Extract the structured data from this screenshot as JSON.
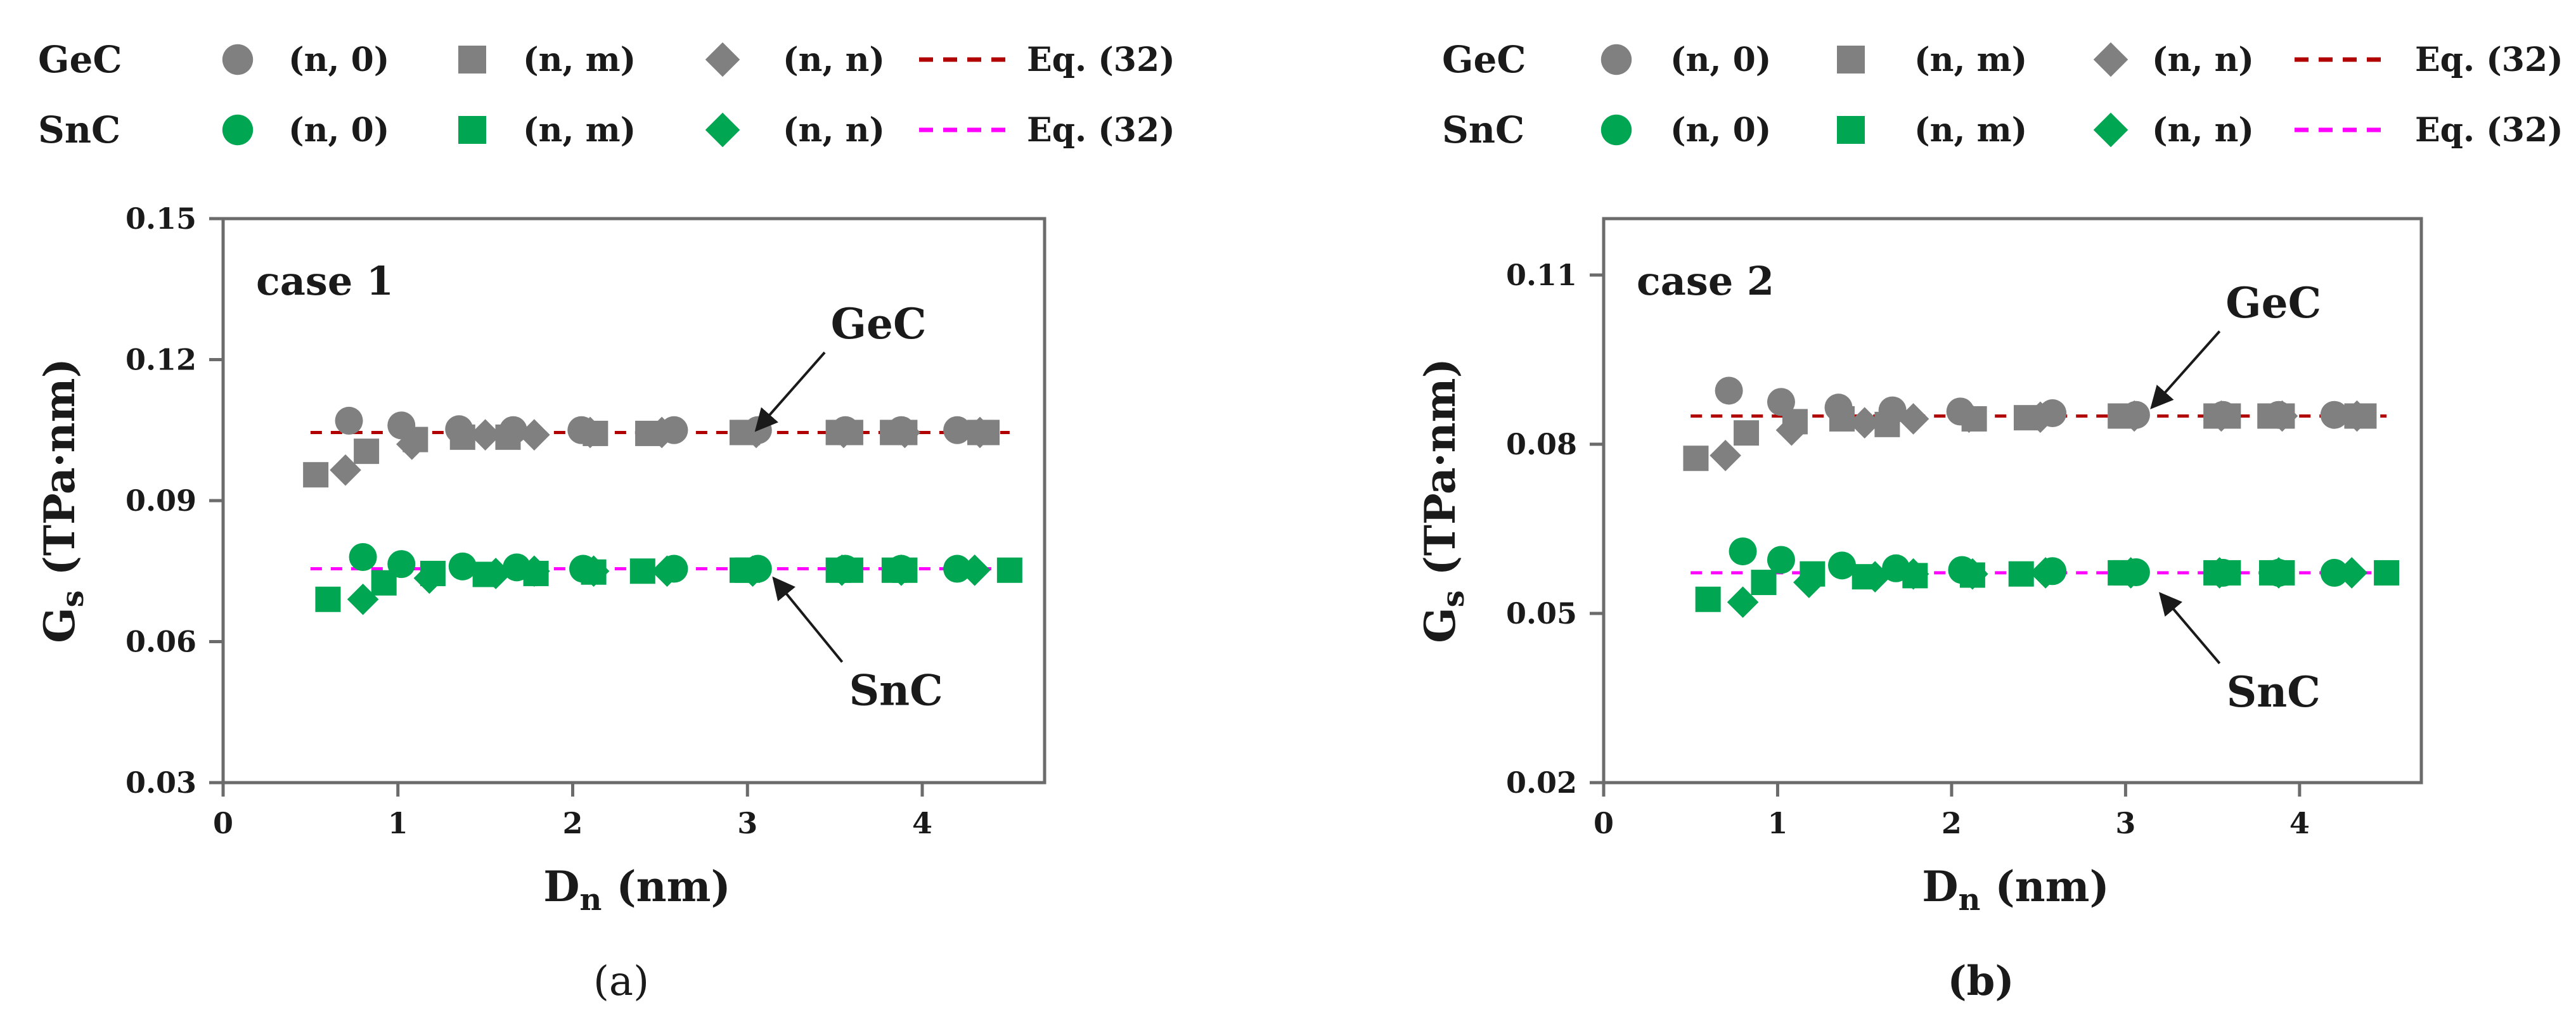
{
  "colors": {
    "gec_marker": "#808080",
    "snc_marker": "#00a651",
    "gec_eq_line": "#b00000",
    "snc_eq_line": "#ff00ff",
    "axis": "#6b6b6b",
    "text": "#1a1a1a"
  },
  "legend": {
    "rows": [
      {
        "group": "GeC",
        "items": [
          {
            "marker": "circle",
            "label": "(n, 0)"
          },
          {
            "marker": "square",
            "label": "(n, m)"
          },
          {
            "marker": "diamond",
            "label": "(n, n)"
          },
          {
            "marker": "dashed-line",
            "label": "Eq. (32)"
          }
        ]
      },
      {
        "group": "SnC",
        "items": [
          {
            "marker": "circle",
            "label": "(n, 0)"
          },
          {
            "marker": "square",
            "label": "(n, m)"
          },
          {
            "marker": "diamond",
            "label": "(n, n)"
          },
          {
            "marker": "dashed-line",
            "label": "Eq. (32)"
          }
        ]
      }
    ]
  },
  "chart_data": [
    {
      "type": "scatter",
      "panel_label": "(a)",
      "case_label": "case 1",
      "xlabel": "D",
      "xlabel_sub": "n",
      "xlabel_unit": " (nm)",
      "ylabel": "G",
      "ylabel_sub": "s",
      "ylabel_unit": " (TPa·nm)",
      "xlim": [
        0,
        4.7
      ],
      "ylim": [
        0.03,
        0.15
      ],
      "xticks": [
        0,
        1,
        2,
        3,
        4
      ],
      "yticks": [
        0.03,
        0.06,
        0.09,
        0.12,
        0.15
      ],
      "ytick_labels": [
        "0.03",
        "0.06",
        "0.09",
        "0.12",
        "0.15"
      ],
      "annotations": [
        {
          "text": "GeC",
          "arrow_to": [
            3.05,
            0.105
          ],
          "text_at": [
            3.75,
            0.1245
          ]
        },
        {
          "text": "SnC",
          "arrow_to": [
            3.15,
            0.0735
          ],
          "text_at": [
            3.85,
            0.0465
          ]
        }
      ],
      "series": [
        {
          "name": "GeC (n, 0)",
          "material": "GeC",
          "marker": "circle",
          "x": [
            0.72,
            1.02,
            1.35,
            1.66,
            2.05,
            2.58,
            3.06,
            3.56,
            3.88,
            4.2
          ],
          "y": [
            0.107,
            0.106,
            0.1052,
            0.105,
            0.105,
            0.105,
            0.105,
            0.105,
            0.105,
            0.105
          ]
        },
        {
          "name": "GeC (n, m)",
          "material": "GeC",
          "marker": "square",
          "x": [
            0.53,
            0.82,
            1.1,
            1.37,
            1.63,
            2.13,
            2.43,
            2.97,
            3.0,
            3.52,
            3.59,
            3.83,
            3.9,
            4.33,
            4.37
          ],
          "y": [
            0.0955,
            0.1005,
            0.103,
            0.1035,
            0.1035,
            0.1043,
            0.1043,
            0.1045,
            0.1045,
            0.1045,
            0.1045,
            0.1045,
            0.1045,
            0.1045,
            0.1045
          ]
        },
        {
          "name": "GeC (n, n)",
          "material": "GeC",
          "marker": "diamond",
          "x": [
            0.7,
            1.08,
            1.5,
            1.78,
            2.1,
            2.51,
            3.05,
            3.55,
            3.9,
            4.33
          ],
          "y": [
            0.0965,
            0.102,
            0.104,
            0.104,
            0.1045,
            0.1045,
            0.1045,
            0.1045,
            0.1045,
            0.1045
          ]
        },
        {
          "name": "SnC (n, 0)",
          "material": "SnC",
          "marker": "circle",
          "x": [
            0.8,
            1.02,
            1.37,
            1.68,
            2.06,
            2.58,
            3.06,
            3.56,
            3.88,
            4.2
          ],
          "y": [
            0.078,
            0.0765,
            0.076,
            0.0758,
            0.0755,
            0.0755,
            0.0755,
            0.0755,
            0.0755,
            0.0755
          ]
        },
        {
          "name": "SnC (n, m)",
          "material": "SnC",
          "marker": "square",
          "x": [
            0.6,
            0.92,
            1.2,
            1.5,
            1.79,
            2.12,
            2.4,
            2.97,
            3.0,
            3.52,
            3.59,
            3.84,
            3.9,
            4.5
          ],
          "y": [
            0.069,
            0.0725,
            0.0745,
            0.0743,
            0.0745,
            0.0748,
            0.075,
            0.0752,
            0.0752,
            0.0752,
            0.0752,
            0.0752,
            0.0752,
            0.0752
          ]
        },
        {
          "name": "SnC (n, n)",
          "material": "SnC",
          "marker": "diamond",
          "x": [
            0.8,
            1.18,
            1.56,
            1.78,
            2.12,
            2.54,
            3.03,
            3.54,
            3.88,
            4.3
          ],
          "y": [
            0.069,
            0.0735,
            0.0745,
            0.075,
            0.075,
            0.075,
            0.075,
            0.0752,
            0.0752,
            0.0752
          ]
        }
      ],
      "eq_lines": [
        {
          "name": "GeC Eq. (32)",
          "material": "GeC",
          "x": [
            0.5,
            4.5
          ],
          "y": [
            0.1045,
            0.1045
          ]
        },
        {
          "name": "SnC Eq. (32)",
          "material": "SnC",
          "x": [
            0.5,
            4.5
          ],
          "y": [
            0.0755,
            0.0755
          ]
        }
      ]
    },
    {
      "type": "scatter",
      "panel_label": "(b)",
      "case_label": "case 2",
      "xlabel": "D",
      "xlabel_sub": "n",
      "xlabel_unit": " (nm)",
      "ylabel": "G",
      "ylabel_sub": "s",
      "ylabel_unit": " (TPa·nm)",
      "xlim": [
        0,
        4.7
      ],
      "ylim": [
        0.02,
        0.12
      ],
      "xticks": [
        0,
        1,
        2,
        3,
        4
      ],
      "yticks": [
        0.02,
        0.05,
        0.08,
        0.11
      ],
      "ytick_labels": [
        "0.02",
        "0.05",
        "0.08",
        "0.11"
      ],
      "annotations": [
        {
          "text": "GeC",
          "arrow_to": [
            3.15,
            0.0865
          ],
          "text_at": [
            3.85,
            0.1025
          ]
        },
        {
          "text": "SnC",
          "arrow_to": [
            3.2,
            0.0535
          ],
          "text_at": [
            3.85,
            0.0335
          ]
        }
      ],
      "series": [
        {
          "name": "GeC (n, 0)",
          "material": "GeC",
          "marker": "circle",
          "x": [
            0.72,
            1.02,
            1.35,
            1.66,
            2.05,
            2.58,
            3.06,
            3.56,
            3.88,
            4.2
          ],
          "y": [
            0.0895,
            0.0875,
            0.0865,
            0.086,
            0.0858,
            0.0855,
            0.0852,
            0.0852,
            0.0852,
            0.0852
          ]
        },
        {
          "name": "GeC (n, m)",
          "material": "GeC",
          "marker": "square",
          "x": [
            0.53,
            0.82,
            1.1,
            1.37,
            1.63,
            2.13,
            2.43,
            2.97,
            3.0,
            3.52,
            3.59,
            3.83,
            3.9,
            4.33,
            4.37
          ],
          "y": [
            0.0775,
            0.082,
            0.084,
            0.0845,
            0.0835,
            0.0845,
            0.0847,
            0.085,
            0.085,
            0.085,
            0.085,
            0.085,
            0.085,
            0.085,
            0.085
          ]
        },
        {
          "name": "GeC (n, n)",
          "material": "GeC",
          "marker": "diamond",
          "x": [
            0.7,
            1.08,
            1.5,
            1.78,
            2.1,
            2.51,
            3.05,
            3.55,
            3.9,
            4.33
          ],
          "y": [
            0.078,
            0.0825,
            0.0838,
            0.0845,
            0.0848,
            0.0848,
            0.085,
            0.085,
            0.085,
            0.085
          ]
        },
        {
          "name": "SnC (n, 0)",
          "material": "SnC",
          "marker": "circle",
          "x": [
            0.8,
            1.02,
            1.37,
            1.68,
            2.06,
            2.58,
            3.06,
            3.56,
            3.88,
            4.2
          ],
          "y": [
            0.061,
            0.0595,
            0.0585,
            0.058,
            0.0577,
            0.0575,
            0.0573,
            0.0572,
            0.0572,
            0.0572
          ]
        },
        {
          "name": "SnC (n, m)",
          "material": "SnC",
          "marker": "square",
          "x": [
            0.6,
            0.92,
            1.2,
            1.5,
            1.79,
            2.12,
            2.4,
            2.97,
            3.0,
            3.52,
            3.59,
            3.84,
            3.9,
            4.5
          ],
          "y": [
            0.0525,
            0.0555,
            0.057,
            0.0565,
            0.0567,
            0.0568,
            0.057,
            0.0572,
            0.0572,
            0.0572,
            0.0572,
            0.0572,
            0.0572,
            0.0572
          ]
        },
        {
          "name": "SnC (n, n)",
          "material": "SnC",
          "marker": "diamond",
          "x": [
            0.8,
            1.18,
            1.56,
            1.78,
            2.12,
            2.54,
            3.03,
            3.54,
            3.88,
            4.3
          ],
          "y": [
            0.052,
            0.0555,
            0.0565,
            0.057,
            0.057,
            0.0572,
            0.0572,
            0.0572,
            0.0572,
            0.0572
          ]
        }
      ],
      "eq_lines": [
        {
          "name": "GeC Eq. (32)",
          "material": "GeC",
          "x": [
            0.5,
            4.5
          ],
          "y": [
            0.085,
            0.085
          ]
        },
        {
          "name": "SnC Eq. (32)",
          "material": "SnC",
          "x": [
            0.5,
            4.5
          ],
          "y": [
            0.0572,
            0.0572
          ]
        }
      ]
    }
  ]
}
